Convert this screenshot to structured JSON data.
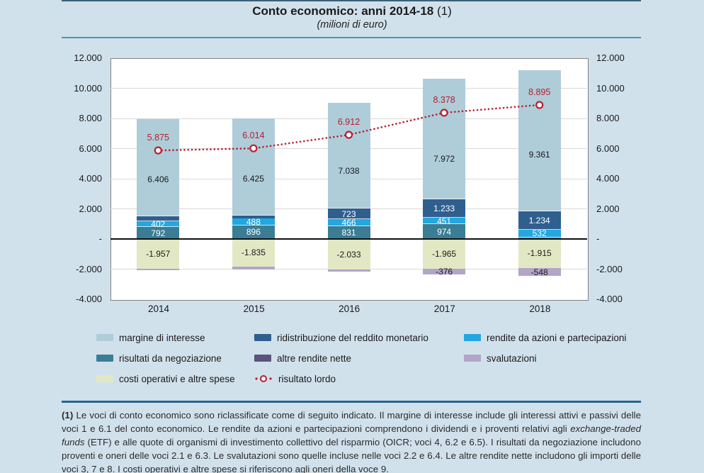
{
  "header": {
    "title_bold": "Conto economico: anni 2014-18",
    "title_note": " (1)",
    "subtitle": "(milioni di euro)"
  },
  "chart_data": {
    "type": "bar",
    "subtype": "stacked-bars-with-line-overlay",
    "title": "Conto economico: anni 2014-18 (1)",
    "subtitle": "(milioni di euro)",
    "categories": [
      "2014",
      "2015",
      "2016",
      "2017",
      "2018"
    ],
    "ylim": [
      -4000,
      12000
    ],
    "ytick_step": 2000,
    "ytick_labels": [
      "12.000",
      "10.000",
      "8.000",
      "6.000",
      "4.000",
      "2.000",
      "-",
      "-2.000",
      "-4.000"
    ],
    "grid": "horizontal",
    "series": [
      {
        "name": "margine di interesse",
        "color": "#afccd9",
        "label_color": "#1a1a1a",
        "label_placement": "bar-center",
        "values": [
          6406,
          6425,
          7038,
          7972,
          9361
        ],
        "labels": [
          "6.406",
          "6.425",
          "7.038",
          "7.972",
          "9.361"
        ]
      },
      {
        "name": "ridistribuzione del reddito monetario",
        "color": "#2f5f8f",
        "label_color": "#ffffff",
        "values": [
          330,
          190,
          723,
          1233,
          1234
        ],
        "labels": [
          null,
          null,
          "723",
          "1.233",
          "1.234"
        ]
      },
      {
        "name": "rendite da azioni e partecipazioni",
        "color": "#22a7e0",
        "label_color": "#ffffff",
        "values": [
          402,
          488,
          466,
          451,
          532
        ],
        "labels": [
          "402",
          "488",
          "466",
          "451",
          "532"
        ]
      },
      {
        "name": "risultati da negoziazione",
        "color": "#3a7d94",
        "label_color": "#ffffff",
        "values": [
          792,
          896,
          831,
          974,
          90
        ],
        "labels": [
          "792",
          "896",
          "831",
          "974",
          null
        ]
      },
      {
        "name": "costi operativi e altre spese",
        "color": "#e2e8c3",
        "label_color": "#1a1a1a",
        "values": [
          -1957,
          -1835,
          -2033,
          -1965,
          -1915
        ],
        "labels": [
          "-1.957",
          "-1.835",
          "-2.033",
          "-1.965",
          "-1.915"
        ]
      },
      {
        "name": "svalutazioni",
        "color": "#b2a5c8",
        "label_color": "#1a1a1a",
        "values": [
          -100,
          -190,
          -130,
          -376,
          -548
        ],
        "labels": [
          null,
          null,
          null,
          "-376",
          "-548"
        ]
      },
      {
        "name": "altre rendite nette",
        "color": "#5a527f",
        "label_color": "#ffffff",
        "values": [
          0,
          0,
          0,
          0,
          0
        ],
        "labels": [
          null,
          null,
          null,
          null,
          null
        ]
      }
    ],
    "positive_stack_bottom_to_top": [
      3,
      2,
      1,
      0
    ],
    "negative_stack_from_zero": [
      4,
      5
    ],
    "line": {
      "name": "risultato lordo",
      "color": "#b5202f",
      "values": [
        5875,
        6014,
        6912,
        8378,
        8895
      ],
      "labels": [
        "5.875",
        "6.014",
        "6.912",
        "8.378",
        "8.895"
      ]
    },
    "legend_position": "bottom"
  },
  "legend": {
    "items": [
      {
        "label": "margine di interesse",
        "color": "#afccd9",
        "type": "swatch",
        "row": 0,
        "col": 0
      },
      {
        "label": "ridistribuzione del reddito monetario",
        "color": "#2f5f8f",
        "type": "swatch",
        "row": 0,
        "col": 1
      },
      {
        "label": "rendite da azioni e partecipazioni",
        "color": "#22a7e0",
        "type": "swatch",
        "row": 0,
        "col": 2
      },
      {
        "label": "risultati da negoziazione",
        "color": "#3a7d94",
        "type": "swatch",
        "row": 1,
        "col": 0
      },
      {
        "label": "altre rendite nette",
        "color": "#5a527f",
        "type": "swatch",
        "row": 1,
        "col": 1
      },
      {
        "label": "svalutazioni",
        "color": "#b2a5c8",
        "type": "swatch",
        "row": 1,
        "col": 2
      },
      {
        "label": "costi operativi e altre spese",
        "color": "#e2e8c3",
        "type": "swatch",
        "row": 2,
        "col": 0
      },
      {
        "label": "risultato lordo",
        "color": "#b5202f",
        "type": "line-marker",
        "row": 2,
        "col": 1
      }
    ]
  },
  "footnote": {
    "marker": "(1)",
    "part1": " Le voci di conto economico sono riclassificate come di seguito indicato. Il margine di interesse include gli interessi attivi e passivi delle voci 1 e 6.1 del conto economico. Le rendite da azioni e partecipazioni comprendono i dividendi e i proventi relativi agli ",
    "italic1": "exchange-traded funds",
    "part2": " (ETF) e alle quote di organismi di investimento collettivo del risparmio (OICR; voci 4, 6.2 e 6.5). I risultati da negoziazione includono proventi e oneri delle voci 2.1 e 6.3. Le svalutazioni sono quelle incluse nelle voci 2.2 e 6.4. Le altre rendite nette includono gli importi delle voci 3, 7 e 8. I costi operativi e altre spese si riferiscono agli oneri della voce 9."
  }
}
